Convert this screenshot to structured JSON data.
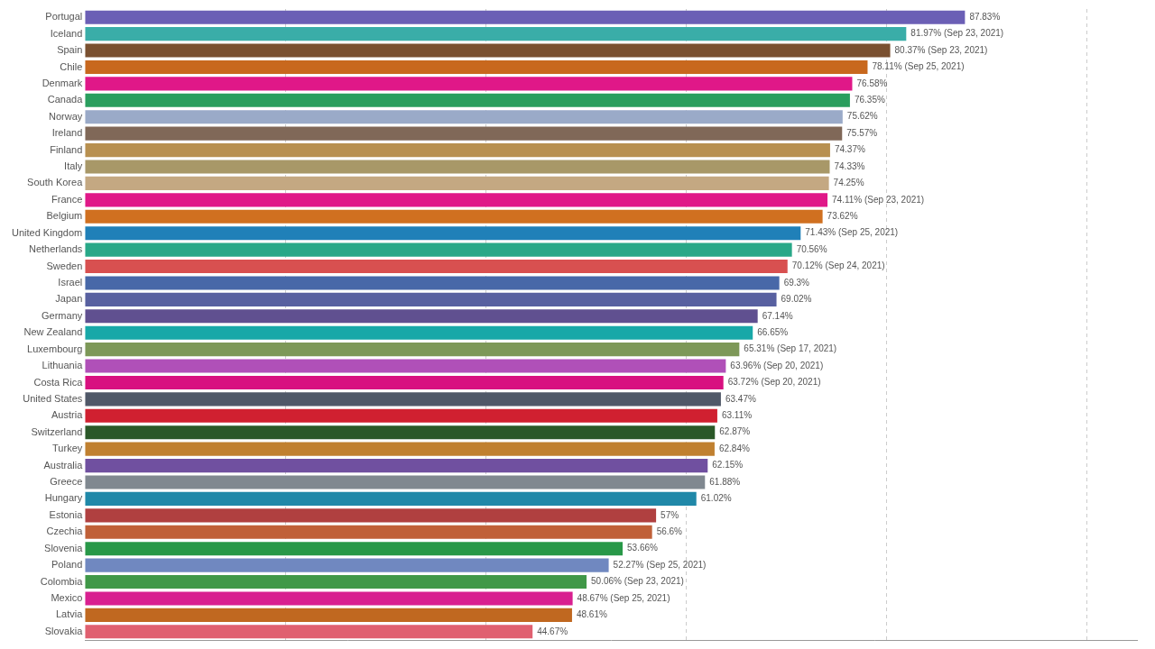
{
  "chart_data": {
    "type": "bar",
    "orientation": "horizontal",
    "categories": [
      "Portugal",
      "Iceland",
      "Spain",
      "Chile",
      "Denmark",
      "Canada",
      "Norway",
      "Ireland",
      "Finland",
      "Italy",
      "South Korea",
      "France",
      "Belgium",
      "United Kingdom",
      "Netherlands",
      "Sweden",
      "Israel",
      "Japan",
      "Germany",
      "New Zealand",
      "Luxembourg",
      "Lithuania",
      "Costa Rica",
      "United States",
      "Austria",
      "Switzerland",
      "Turkey",
      "Australia",
      "Greece",
      "Hungary",
      "Estonia",
      "Czechia",
      "Slovenia",
      "Poland",
      "Colombia",
      "Mexico",
      "Latvia",
      "Slovakia"
    ],
    "values": [
      87.83,
      81.97,
      80.37,
      78.11,
      76.58,
      76.35,
      75.62,
      75.57,
      74.37,
      74.33,
      74.25,
      74.11,
      73.62,
      71.43,
      70.56,
      70.12,
      69.3,
      69.02,
      67.14,
      66.65,
      65.31,
      63.96,
      63.72,
      63.47,
      63.11,
      62.87,
      62.84,
      62.15,
      61.88,
      61.02,
      57.0,
      56.6,
      53.66,
      52.27,
      50.06,
      48.67,
      48.61,
      44.67
    ],
    "value_labels": [
      "87.83%",
      "81.97% (Sep 23, 2021)",
      "80.37% (Sep 23, 2021)",
      "78.11% (Sep 25, 2021)",
      "76.58%",
      "76.35%",
      "75.62%",
      "75.57%",
      "74.37%",
      "74.33%",
      "74.25%",
      "74.11% (Sep 23, 2021)",
      "73.62%",
      "71.43% (Sep 25, 2021)",
      "70.56%",
      "70.12% (Sep 24, 2021)",
      "69.3%",
      "69.02%",
      "67.14%",
      "66.65%",
      "65.31% (Sep 17, 2021)",
      "63.96% (Sep 20, 2021)",
      "63.72% (Sep 20, 2021)",
      "63.47%",
      "63.11%",
      "62.87%",
      "62.84%",
      "62.15%",
      "61.88%",
      "61.02%",
      "57%",
      "56.6%",
      "53.66%",
      "52.27% (Sep 25, 2021)",
      "50.06% (Sep 23, 2021)",
      "48.67% (Sep 25, 2021)",
      "48.61%",
      "44.67%"
    ],
    "colors": [
      "#6b5fb5",
      "#3aada8",
      "#7a5030",
      "#c8681e",
      "#e01888",
      "#2a9e5e",
      "#9aaac8",
      "#806858",
      "#b89050",
      "#a89868",
      "#c4a882",
      "#e01888",
      "#d07020",
      "#2080b8",
      "#28a888",
      "#d85050",
      "#4868a8",
      "#5860a0",
      "#605090",
      "#18a8a8",
      "#7d9858",
      "#b050b8",
      "#d81080",
      "#505868",
      "#d02030",
      "#2a5828",
      "#c08030",
      "#7050a0",
      "#808890",
      "#2088a8",
      "#b04040",
      "#c06038",
      "#289848",
      "#7088c0",
      "#409848",
      "#d82090",
      "#c06820",
      "#e06070"
    ],
    "xlim": [
      0,
      105
    ],
    "xticks": [
      20,
      40,
      60,
      80,
      100
    ],
    "grid": true,
    "data_labels": true,
    "tick_labels": "y"
  }
}
